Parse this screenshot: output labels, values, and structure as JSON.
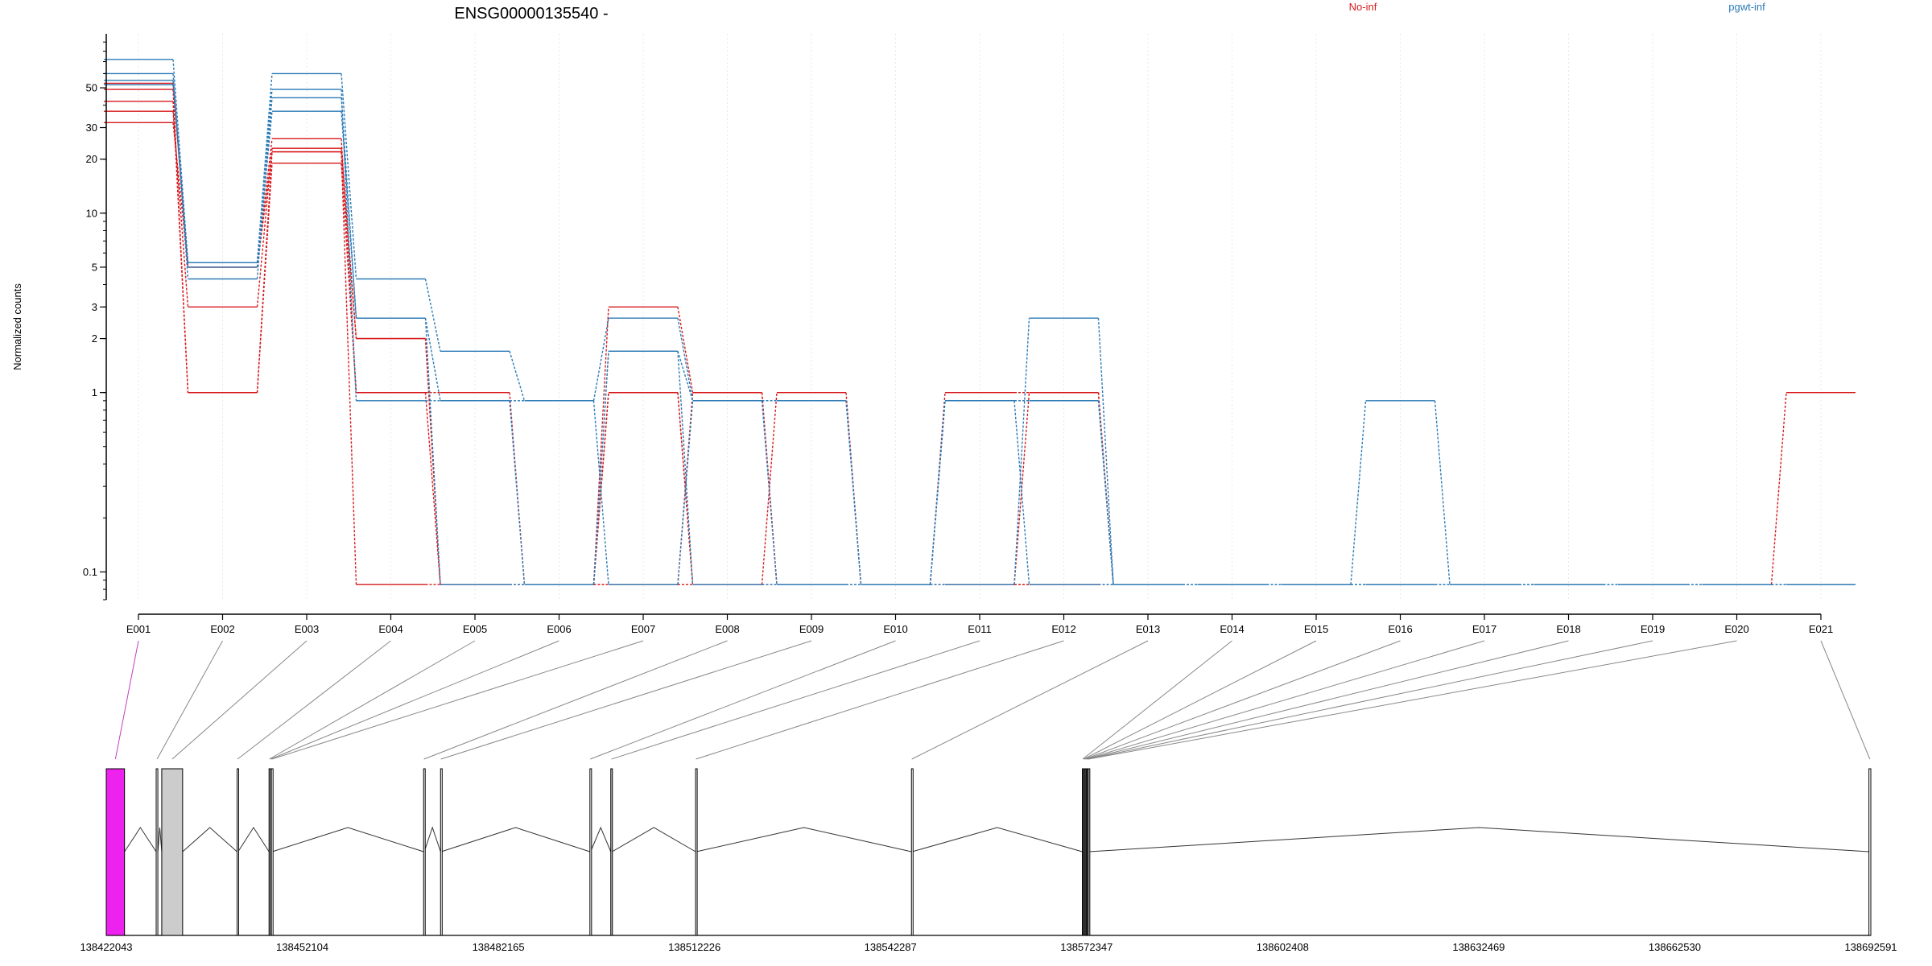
{
  "chart_data": [
    {
      "type": "line",
      "title": "ENSG00000135540 -",
      "ylabel": "Normalized counts",
      "yscale": "log",
      "ylim": [
        0.07,
        100
      ],
      "yticks": [
        0.1,
        1,
        2,
        3,
        5,
        10,
        20,
        30,
        50
      ],
      "ytick_labels": [
        "0.1",
        "1",
        "2",
        "3",
        "5",
        "10",
        "20",
        "30",
        "50"
      ],
      "categories": [
        "E001",
        "E002",
        "E003",
        "E004",
        "E005",
        "E006",
        "E007",
        "E008",
        "E009",
        "E010",
        "E011",
        "E012",
        "E013",
        "E014",
        "E015",
        "E016",
        "E017",
        "E018",
        "E019",
        "E020",
        "E021"
      ],
      "legend": [
        {
          "name": "No-inf",
          "color": "#d7191c"
        },
        {
          "name": "pgwt-inf",
          "color": "#2c7bb6"
        }
      ],
      "zero_floor": 0.085,
      "series": [
        {
          "name": "",
          "group": "No-inf",
          "values": [
            49,
            1.0,
            22,
            2.0,
            0,
            0,
            3.0,
            1.0,
            0,
            0,
            1.0,
            1.0,
            0,
            0,
            0,
            0,
            0,
            0,
            0,
            0,
            0
          ]
        },
        {
          "name": "",
          "group": "No-inf",
          "values": [
            42,
            1.0,
            19,
            1.0,
            1.0,
            0,
            1.0,
            0,
            1.0,
            0,
            0,
            0,
            0,
            0,
            0,
            0,
            0,
            0,
            0,
            0,
            1.0
          ]
        },
        {
          "name": "",
          "group": "No-inf",
          "values": [
            37,
            3.0,
            23,
            2.0,
            0,
            0,
            0,
            1.0,
            0,
            0,
            0,
            1.0,
            0,
            0,
            0,
            0,
            0,
            0,
            0,
            0,
            0
          ]
        },
        {
          "name": "",
          "group": "No-inf",
          "values": [
            53,
            5.0,
            26,
            1.0,
            0,
            0,
            1.0,
            0,
            0,
            0,
            0,
            0,
            0,
            0,
            0,
            0,
            0,
            0,
            0,
            0,
            0
          ]
        },
        {
          "name": "",
          "group": "No-inf",
          "values": [
            32,
            5.0,
            22,
            0,
            0,
            0,
            0,
            0,
            0,
            0,
            0,
            0,
            0,
            0,
            0,
            0,
            0,
            0,
            0,
            0,
            0
          ]
        },
        {
          "name": "",
          "group": "pgwt-inf",
          "values": [
            72,
            5.3,
            60,
            4.3,
            1.7,
            0.9,
            2.6,
            0.9,
            0.9,
            0,
            0.9,
            0.9,
            0,
            0,
            0,
            0.9,
            0,
            0,
            0,
            0,
            0
          ]
        },
        {
          "name": "",
          "group": "pgwt-inf",
          "values": [
            60,
            4.3,
            44,
            2.6,
            0.9,
            0,
            1.7,
            0,
            0,
            0,
            0,
            2.6,
            0,
            0,
            0,
            0,
            0,
            0,
            0,
            0,
            0
          ]
        },
        {
          "name": "",
          "group": "pgwt-inf",
          "values": [
            55,
            5.3,
            49,
            0.9,
            0.9,
            0.9,
            0,
            0.9,
            0.9,
            0,
            0.9,
            0.9,
            0,
            0,
            0,
            0,
            0,
            0,
            0,
            0,
            0
          ]
        },
        {
          "name": "",
          "group": "pgwt-inf",
          "values": [
            52,
            5.0,
            37,
            2.6,
            0,
            0,
            1.7,
            0.9,
            0,
            0,
            0.9,
            0,
            0,
            0,
            0,
            0,
            0,
            0,
            0,
            0,
            0
          ]
        }
      ]
    },
    {
      "type": "gene-model",
      "xlabel": "",
      "x_ticks": [
        138422043,
        138452104,
        138482165,
        138512226,
        138542287,
        138572347,
        138602408,
        138632469,
        138662530,
        138692591
      ],
      "x_tick_labels": [
        "138422043",
        "138452104",
        "138482165",
        "138512226",
        "138542287",
        "138572347",
        "138602408",
        "138632469",
        "138662530",
        "138692591"
      ],
      "xlim": [
        138422043,
        138692591
      ],
      "exons": [
        {
          "id": "E001",
          "start": 138422043,
          "end": 138424843,
          "fill": "#ee22ee",
          "highlight": true
        },
        {
          "id": "E002",
          "start": 138429700,
          "end": 138429950,
          "fill": "#ffffff",
          "highlight": false
        },
        {
          "id": "E003",
          "start": 138430550,
          "end": 138433750,
          "fill": "#cccccc",
          "highlight": false
        },
        {
          "id": "E004",
          "start": 138442100,
          "end": 138442250,
          "fill": "#ffffff",
          "highlight": false
        },
        {
          "id": "E005",
          "start": 138447000,
          "end": 138447100,
          "fill": "#ffffff",
          "highlight": false
        },
        {
          "id": "E006",
          "start": 138447180,
          "end": 138447300,
          "fill": "#ffffff",
          "highlight": false
        },
        {
          "id": "E007",
          "start": 138447370,
          "end": 138447480,
          "fill": "#ffffff",
          "highlight": false
        },
        {
          "id": "E008",
          "start": 138470700,
          "end": 138470800,
          "fill": "#ffffff",
          "highlight": false
        },
        {
          "id": "E009",
          "start": 138473300,
          "end": 138473400,
          "fill": "#ffffff",
          "highlight": false
        },
        {
          "id": "E010",
          "start": 138496200,
          "end": 138496300,
          "fill": "#ffffff",
          "highlight": false
        },
        {
          "id": "E011",
          "start": 138499400,
          "end": 138499600,
          "fill": "#cccccc",
          "highlight": false
        },
        {
          "id": "E012",
          "start": 138512400,
          "end": 138512500,
          "fill": "#ffffff",
          "highlight": false
        },
        {
          "id": "E013",
          "start": 138545500,
          "end": 138545600,
          "fill": "#ffffff",
          "highlight": false
        },
        {
          "id": "E014",
          "start": 138571700,
          "end": 138571800,
          "fill": "#cccccc",
          "highlight": false
        },
        {
          "id": "E015",
          "start": 138571850,
          "end": 138571950,
          "fill": "#cccccc",
          "highlight": false
        },
        {
          "id": "E016",
          "start": 138572000,
          "end": 138572100,
          "fill": "#cccccc",
          "highlight": false
        },
        {
          "id": "E017",
          "start": 138572150,
          "end": 138572250,
          "fill": "#cccccc",
          "highlight": false
        },
        {
          "id": "E018",
          "start": 138572300,
          "end": 138572400,
          "fill": "#cccccc",
          "highlight": false
        },
        {
          "id": "E019",
          "start": 138572450,
          "end": 138572550,
          "fill": "#cccccc",
          "highlight": false
        },
        {
          "id": "E020",
          "start": 138572600,
          "end": 138572700,
          "fill": "#cccccc",
          "highlight": false
        },
        {
          "id": "E021",
          "start": 138692300,
          "end": 138692591,
          "fill": "#ffffff",
          "highlight": false
        }
      ],
      "introns": [
        [
          138424843,
          138429700
        ],
        [
          138429950,
          138430550
        ],
        [
          138433750,
          138442100
        ],
        [
          138442250,
          138447000
        ],
        [
          138447480,
          138470700
        ],
        [
          138470800,
          138473300
        ],
        [
          138473400,
          138496200
        ],
        [
          138496300,
          138499400
        ],
        [
          138499600,
          138512400
        ],
        [
          138512500,
          138545500
        ],
        [
          138545600,
          138571700
        ],
        [
          138572700,
          138692300
        ]
      ]
    }
  ]
}
